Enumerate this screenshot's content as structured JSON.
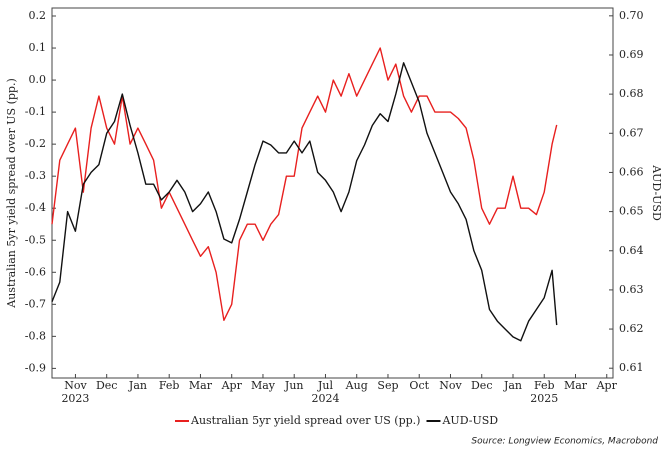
{
  "chart_data": {
    "type": "line",
    "y_label": "Australian 5yr yield spread over US (pp.)",
    "y2_label": "AUD-USD",
    "source": "Source: Longview Economics, Macrobond",
    "xlim": [
      -0.75,
      17.2
    ],
    "xticks": [
      {
        "value": 0,
        "label": "Nov"
      },
      {
        "value": 1,
        "label": "Dec"
      },
      {
        "value": 2,
        "label": "Jan"
      },
      {
        "value": 3,
        "label": "Feb"
      },
      {
        "value": 4,
        "label": "Mar"
      },
      {
        "value": 5,
        "label": "Apr"
      },
      {
        "value": 6,
        "label": "May"
      },
      {
        "value": 7,
        "label": "Jun"
      },
      {
        "value": 8,
        "label": "Jul"
      },
      {
        "value": 9,
        "label": "Aug"
      },
      {
        "value": 10,
        "label": "Sep"
      },
      {
        "value": 11,
        "label": "Oct"
      },
      {
        "value": 12,
        "label": "Nov"
      },
      {
        "value": 13,
        "label": "Dec"
      },
      {
        "value": 14,
        "label": "Jan"
      },
      {
        "value": 15,
        "label": "Feb"
      },
      {
        "value": 16,
        "label": "Mar"
      },
      {
        "value": 17,
        "label": "Apr"
      }
    ],
    "x_year_labels": [
      {
        "value": 0,
        "label": "2023"
      },
      {
        "value": 8,
        "label": "2024"
      },
      {
        "value": 15,
        "label": "2025"
      }
    ],
    "ylim": [
      -0.93,
      0.225
    ],
    "yticks": [
      -0.9,
      -0.8,
      -0.7,
      -0.6,
      -0.5,
      -0.4,
      -0.3,
      -0.2,
      -0.1,
      {
        "value": 0,
        "label": "0.0"
      },
      0.1,
      0.2
    ],
    "y2lim": [
      0.6075,
      0.702
    ],
    "y2ticks": [
      0.61,
      0.62,
      0.63,
      0.64,
      0.65,
      0.66,
      0.67,
      0.68,
      0.69,
      {
        "value": 0.7,
        "label": "0.70"
      }
    ],
    "x": [
      -0.75,
      -0.5,
      -0.25,
      0,
      0.25,
      0.5,
      0.75,
      1,
      1.25,
      1.5,
      1.75,
      2,
      2.25,
      2.5,
      2.75,
      3,
      3.25,
      3.5,
      3.75,
      4,
      4.25,
      4.5,
      4.75,
      5,
      5.25,
      5.5,
      5.75,
      6,
      6.25,
      6.5,
      6.75,
      7,
      7.25,
      7.5,
      7.75,
      8,
      8.25,
      8.5,
      8.75,
      9,
      9.25,
      9.5,
      9.75,
      10,
      10.25,
      10.5,
      10.75,
      11,
      11.25,
      11.5,
      11.75,
      12,
      12.25,
      12.5,
      12.75,
      13,
      13.25,
      13.5,
      13.75,
      14,
      14.25,
      14.5,
      14.75,
      15,
      15.25,
      15.4
    ],
    "series": [
      {
        "name": "Australian 5yr yield spread over US (pp.)",
        "color": "#e8201f",
        "axis": "y",
        "values": [
          -0.45,
          -0.25,
          -0.2,
          -0.15,
          -0.35,
          -0.15,
          -0.05,
          -0.15,
          -0.2,
          -0.05,
          -0.2,
          -0.15,
          -0.2,
          -0.25,
          -0.4,
          -0.35,
          -0.4,
          -0.45,
          -0.5,
          -0.55,
          -0.52,
          -0.6,
          -0.75,
          -0.7,
          -0.5,
          -0.45,
          -0.45,
          -0.5,
          -0.45,
          -0.42,
          -0.3,
          -0.3,
          -0.15,
          -0.1,
          -0.05,
          -0.1,
          0,
          -0.05,
          0.02,
          -0.05,
          0,
          0.05,
          0.1,
          0,
          0.05,
          -0.05,
          -0.1,
          -0.05,
          -0.05,
          -0.1,
          -0.1,
          -0.1,
          -0.12,
          -0.15,
          -0.25,
          -0.4,
          -0.45,
          -0.4,
          -0.4,
          -0.3,
          -0.4,
          -0.4,
          -0.42,
          -0.35,
          -0.2,
          -0.14
        ]
      },
      {
        "name": "AUD-USD",
        "color": "#111111",
        "axis": "y2",
        "values": [
          0.627,
          0.632,
          0.65,
          0.645,
          0.657,
          0.66,
          0.662,
          0.67,
          0.673,
          0.68,
          0.672,
          0.665,
          0.657,
          0.657,
          0.653,
          0.655,
          0.658,
          0.655,
          0.65,
          0.652,
          0.655,
          0.65,
          0.643,
          0.642,
          0.648,
          0.655,
          0.662,
          0.668,
          0.667,
          0.665,
          0.665,
          0.668,
          0.665,
          0.668,
          0.66,
          0.658,
          0.655,
          0.65,
          0.655,
          0.663,
          0.667,
          0.672,
          0.675,
          0.673,
          0.68,
          0.688,
          0.683,
          0.678,
          0.67,
          0.665,
          0.66,
          0.655,
          0.652,
          0.648,
          0.64,
          0.635,
          0.625,
          0.622,
          0.62,
          0.618,
          0.617,
          0.622,
          0.625,
          0.628,
          0.635,
          0.621
        ]
      }
    ]
  }
}
